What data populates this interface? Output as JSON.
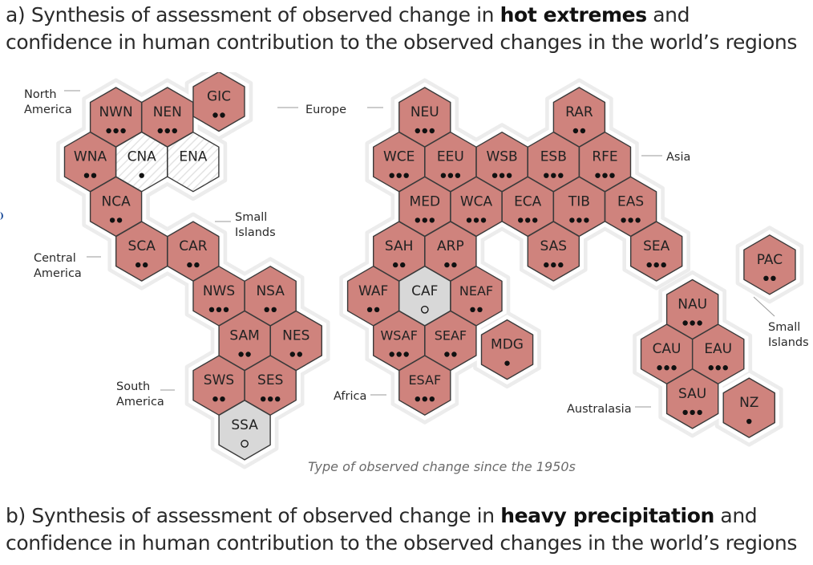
{
  "panel_a": {
    "prefix": "a) Synthesis of assessment of observed change in",
    "highlight": "hot extremes",
    "suffix": "and",
    "line2": "confidence in human contribution to the observed changes in the world’s regions"
  },
  "panel_b": {
    "prefix": "b) Synthesis of assessment of observed change in",
    "highlight": "heavy precipitation",
    "suffix": "and",
    "line2": "confidence in human contribution to the observed changes in the world’s regions"
  },
  "legend_caption": "Type of observed change since the 1950s",
  "colors": {
    "increase": "#cf837d",
    "low_agreement": "#d8d8d8",
    "limited_data": "#ffffff",
    "hex_stroke": "#3a3a3a",
    "halo": "#ececec",
    "text": "#222222"
  },
  "group_labels": [
    {
      "id": "north-america",
      "lines": [
        "North",
        "America"
      ]
    },
    {
      "id": "central-america",
      "lines": [
        "Central",
        "America"
      ]
    },
    {
      "id": "south-america",
      "lines": [
        "South",
        "America"
      ]
    },
    {
      "id": "small-islands-1",
      "lines": [
        "Small",
        "Islands"
      ]
    },
    {
      "id": "europe",
      "lines": [
        "Europe"
      ]
    },
    {
      "id": "asia",
      "lines": [
        "Asia"
      ]
    },
    {
      "id": "africa",
      "lines": [
        "Africa"
      ]
    },
    {
      "id": "australasia",
      "lines": [
        "Australasia"
      ]
    },
    {
      "id": "small-islands-2",
      "lines": [
        "Small",
        "Islands"
      ]
    }
  ],
  "regions": [
    {
      "code": "NWN",
      "change": "increase",
      "confidence": 3
    },
    {
      "code": "NEN",
      "change": "increase",
      "confidence": 3
    },
    {
      "code": "GIC",
      "change": "increase",
      "confidence": 2
    },
    {
      "code": "WNA",
      "change": "increase",
      "confidence": 2
    },
    {
      "code": "CNA",
      "change": "limited_data",
      "confidence": 1
    },
    {
      "code": "ENA",
      "change": "limited_data",
      "confidence": 0
    },
    {
      "code": "NCA",
      "change": "increase",
      "confidence": 2
    },
    {
      "code": "SCA",
      "change": "increase",
      "confidence": 2
    },
    {
      "code": "CAR",
      "change": "increase",
      "confidence": 2
    },
    {
      "code": "NWS",
      "change": "increase",
      "confidence": 3
    },
    {
      "code": "NSA",
      "change": "increase",
      "confidence": 2
    },
    {
      "code": "SAM",
      "change": "increase",
      "confidence": 2
    },
    {
      "code": "NES",
      "change": "increase",
      "confidence": 2
    },
    {
      "code": "SWS",
      "change": "increase",
      "confidence": 2
    },
    {
      "code": "SES",
      "change": "increase",
      "confidence": 3
    },
    {
      "code": "SSA",
      "change": "low_agreement",
      "confidence": "low"
    },
    {
      "code": "NEU",
      "change": "increase",
      "confidence": 3
    },
    {
      "code": "RAR",
      "change": "increase",
      "confidence": 2
    },
    {
      "code": "WCE",
      "change": "increase",
      "confidence": 3
    },
    {
      "code": "EEU",
      "change": "increase",
      "confidence": 3
    },
    {
      "code": "WSB",
      "change": "increase",
      "confidence": 3
    },
    {
      "code": "ESB",
      "change": "increase",
      "confidence": 3
    },
    {
      "code": "RFE",
      "change": "increase",
      "confidence": 3
    },
    {
      "code": "MED",
      "change": "increase",
      "confidence": 3
    },
    {
      "code": "WCA",
      "change": "increase",
      "confidence": 3
    },
    {
      "code": "ECA",
      "change": "increase",
      "confidence": 3
    },
    {
      "code": "TIB",
      "change": "increase",
      "confidence": 3
    },
    {
      "code": "EAS",
      "change": "increase",
      "confidence": 3
    },
    {
      "code": "SAH",
      "change": "increase",
      "confidence": 2
    },
    {
      "code": "ARP",
      "change": "increase",
      "confidence": 2
    },
    {
      "code": "SAS",
      "change": "increase",
      "confidence": 3
    },
    {
      "code": "SEA",
      "change": "increase",
      "confidence": 3
    },
    {
      "code": "PAC",
      "change": "increase",
      "confidence": 2
    },
    {
      "code": "WAF",
      "change": "increase",
      "confidence": 2
    },
    {
      "code": "CAF",
      "change": "low_agreement",
      "confidence": "low"
    },
    {
      "code": "NEAF",
      "change": "increase",
      "confidence": 2
    },
    {
      "code": "NAU",
      "change": "increase",
      "confidence": 3
    },
    {
      "code": "WSAF",
      "change": "increase",
      "confidence": 3
    },
    {
      "code": "SEAF",
      "change": "increase",
      "confidence": 2
    },
    {
      "code": "MDG",
      "change": "increase",
      "confidence": 1
    },
    {
      "code": "CAU",
      "change": "increase",
      "confidence": 3
    },
    {
      "code": "EAU",
      "change": "increase",
      "confidence": 3
    },
    {
      "code": "ESAF",
      "change": "increase",
      "confidence": 3
    },
    {
      "code": "SAU",
      "change": "increase",
      "confidence": 3
    },
    {
      "code": "NZ",
      "change": "increase",
      "confidence": 1
    }
  ]
}
